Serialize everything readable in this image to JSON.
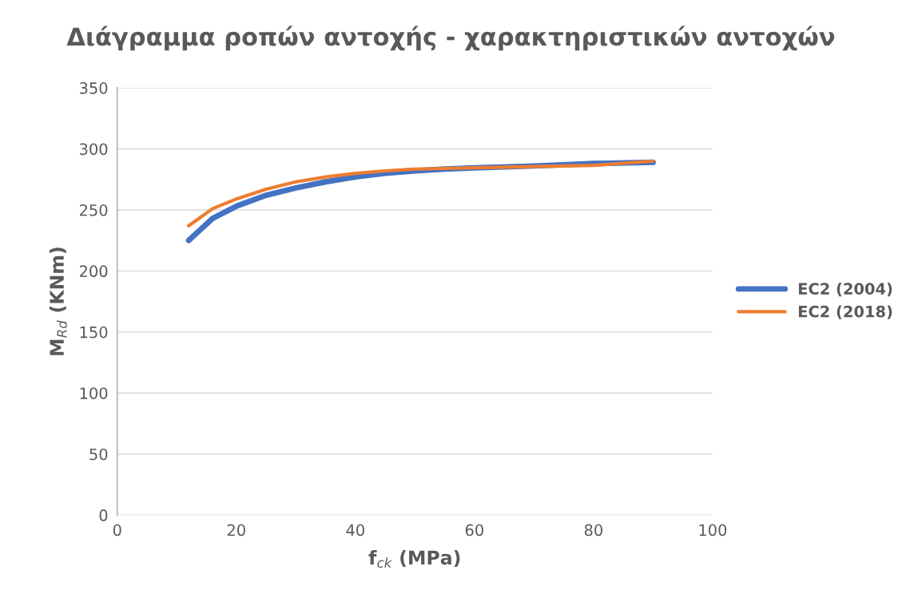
{
  "chart_data": {
    "type": "line",
    "title": "Διάγραμμα ροπών αντοχής - χαρακτηριστικών αντοχών",
    "xlabel": "f$_{ck}$ (MPa)",
    "ylabel": "M$_{Rd}$ (KNm)",
    "x": [
      12,
      16,
      20,
      25,
      30,
      35,
      40,
      45,
      50,
      55,
      60,
      70,
      80,
      90
    ],
    "series": [
      {
        "name": "EC2 (2004)",
        "color": "#4472c4",
        "values": [
          225,
          243,
          253,
          262,
          268,
          273,
          277,
          280,
          282,
          283.5,
          284.5,
          286,
          288,
          289
        ]
      },
      {
        "name": "EC2 (2018)",
        "color": "#ed7d31",
        "values": [
          237,
          251,
          259,
          267,
          273,
          277,
          280,
          282,
          283.5,
          284,
          284.5,
          285.5,
          286.5,
          290
        ]
      }
    ],
    "xlim": [
      0,
      100
    ],
    "xticks": [
      0,
      20,
      40,
      60,
      80,
      100
    ],
    "ylim": [
      0,
      350
    ],
    "yticks": [
      0,
      50,
      100,
      150,
      200,
      250,
      300,
      350
    ],
    "grid": "y",
    "legend": "right",
    "marker": "none",
    "line_style": "solid"
  }
}
